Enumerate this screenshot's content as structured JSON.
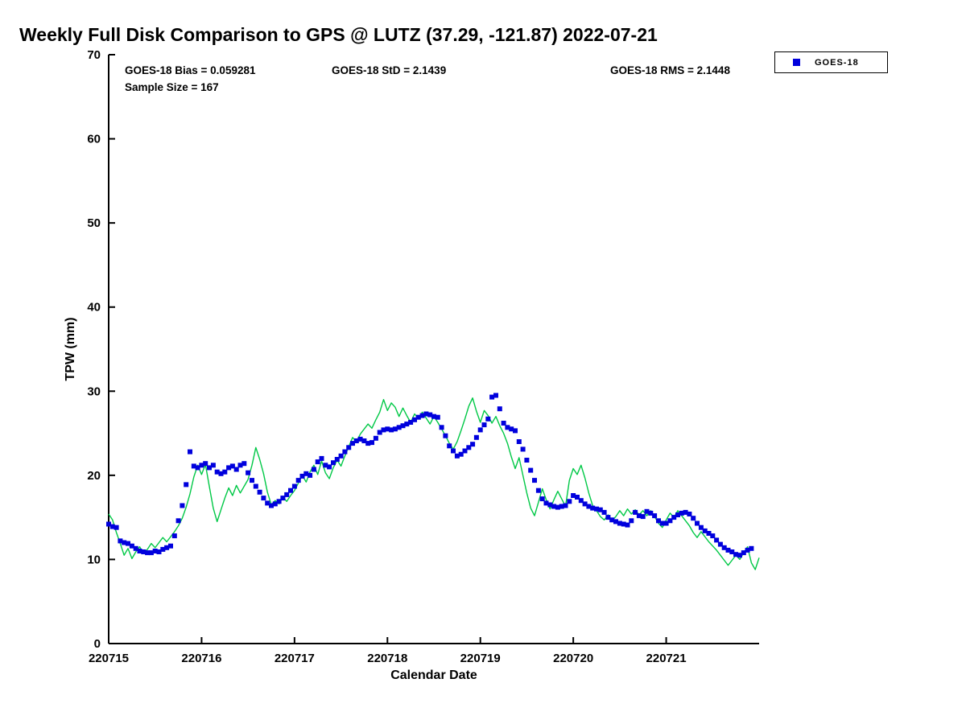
{
  "title": "Weekly Full Disk Comparison to GPS @ LUTZ (37.29, -121.87) 2022-07-21",
  "stats": {
    "bias": "GOES-18 Bias = 0.059281",
    "std": "GOES-18 StD = 2.1439",
    "rms": "GOES-18 RMS = 2.1448",
    "sample_size": "Sample Size = 167"
  },
  "legend": {
    "items": [
      {
        "label": "GOES-18",
        "marker": "square",
        "color": "#0000dd"
      }
    ],
    "position": "outside-top-right"
  },
  "chart_data": {
    "type": "line",
    "title": "Weekly Full Disk Comparison to GPS @ LUTZ (37.29, -121.87) 2022-07-21",
    "xlabel": "Calendar Date",
    "ylabel": "TPW (mm)",
    "x_base": 220715,
    "xlim": [
      220715,
      220722
    ],
    "ylim": [
      0,
      70
    ],
    "grid": false,
    "xticks": [
      {
        "offset": 0,
        "label": "220715"
      },
      {
        "offset": 1,
        "label": "220716"
      },
      {
        "offset": 2,
        "label": "220717"
      },
      {
        "offset": 3,
        "label": "220718"
      },
      {
        "offset": 4,
        "label": "220719"
      },
      {
        "offset": 5,
        "label": "220720"
      },
      {
        "offset": 6,
        "label": "220721"
      }
    ],
    "yticks": [
      0,
      10,
      20,
      30,
      40,
      50,
      60,
      70
    ],
    "series": [
      {
        "name": "GPS",
        "type": "line",
        "color": "#00c846",
        "line_width": 1.4,
        "x_start": 0,
        "x_step": 0.0416667,
        "y": [
          15.4,
          14.7,
          13.2,
          11.9,
          10.5,
          11.3,
          10.1,
          10.9,
          11.5,
          10.7,
          11.2,
          11.9,
          11.4,
          12.0,
          12.6,
          12.1,
          12.7,
          13.3,
          14.0,
          14.9,
          16.2,
          17.8,
          19.8,
          21.2,
          20.1,
          21.3,
          18.7,
          16.1,
          14.5,
          15.9,
          17.3,
          18.5,
          17.6,
          18.8,
          17.9,
          18.7,
          19.5,
          21.2,
          23.3,
          21.9,
          20.2,
          18.0,
          16.5,
          17.0,
          16.6,
          17.4,
          16.9,
          17.6,
          18.2,
          19.1,
          20.0,
          19.2,
          20.4,
          21.2,
          20.1,
          21.7,
          20.3,
          19.6,
          20.9,
          21.8,
          21.1,
          22.3,
          23.4,
          24.5,
          24.0,
          24.9,
          25.5,
          26.1,
          25.6,
          26.6,
          27.5,
          29.0,
          27.7,
          28.6,
          28.1,
          27.0,
          28.0,
          27.1,
          26.3,
          27.3,
          26.7,
          27.5,
          26.8,
          26.1,
          27.0,
          26.3,
          25.5,
          24.7,
          23.8,
          23.1,
          24.0,
          25.3,
          26.7,
          28.2,
          29.2,
          27.6,
          26.3,
          27.7,
          27.1,
          26.2,
          27.0,
          25.9,
          25.0,
          23.8,
          22.2,
          20.8,
          22.1,
          20.0,
          17.9,
          16.1,
          15.2,
          16.8,
          18.4,
          17.1,
          16.0,
          17.1,
          18.1,
          17.2,
          16.3,
          19.4,
          20.8,
          20.1,
          21.2,
          19.7,
          17.9,
          16.4,
          15.8,
          15.1,
          14.7,
          15.3,
          14.6,
          15.1,
          15.8,
          15.2,
          16.0,
          15.4,
          15.9,
          15.3,
          15.8,
          15.2,
          15.8,
          15.1,
          14.3,
          13.8,
          14.7,
          15.5,
          15.0,
          15.8,
          15.2,
          14.6,
          14.0,
          13.2,
          12.6,
          13.3,
          12.7,
          12.1,
          11.6,
          11.1,
          10.5,
          9.9,
          9.3,
          9.9,
          10.5,
          10.0,
          10.8,
          11.5,
          9.6,
          8.8,
          10.2
        ]
      },
      {
        "name": "GOES-18",
        "type": "scatter",
        "marker": "square",
        "marker_size": 6,
        "color": "#0000dd",
        "x_start": 0,
        "x_step": 0.0416667,
        "y": [
          14.2,
          13.9,
          13.8,
          12.2,
          12.0,
          11.9,
          11.6,
          11.3,
          11.0,
          10.9,
          10.8,
          10.8,
          11.0,
          10.9,
          11.2,
          11.4,
          11.6,
          12.8,
          14.6,
          16.4,
          18.9,
          22.8,
          21.1,
          20.9,
          21.2,
          21.4,
          20.9,
          21.2,
          20.4,
          20.2,
          20.4,
          20.9,
          21.1,
          20.7,
          21.2,
          21.4,
          20.3,
          19.4,
          18.7,
          18.0,
          17.3,
          16.7,
          16.4,
          16.6,
          16.9,
          17.3,
          17.7,
          18.2,
          18.7,
          19.4,
          19.9,
          20.2,
          20.0,
          20.7,
          21.6,
          22.0,
          21.2,
          21.0,
          21.5,
          21.9,
          22.3,
          22.8,
          23.3,
          23.8,
          24.1,
          24.3,
          24.1,
          23.8,
          23.9,
          24.4,
          25.1,
          25.4,
          25.5,
          25.4,
          25.5,
          25.7,
          25.9,
          26.1,
          26.3,
          26.6,
          26.9,
          27.1,
          27.3,
          27.2,
          27.0,
          26.9,
          25.7,
          24.7,
          23.5,
          22.9,
          22.3,
          22.5,
          22.9,
          23.3,
          23.7,
          24.5,
          25.4,
          26.0,
          26.7,
          29.3,
          29.5,
          27.9,
          26.2,
          25.7,
          25.5,
          25.3,
          24.0,
          23.1,
          21.8,
          20.6,
          19.4,
          18.2,
          17.2,
          16.7,
          16.5,
          16.3,
          16.2,
          16.3,
          16.4,
          16.9,
          17.6,
          17.4,
          17.0,
          16.6,
          16.3,
          16.1,
          16.0,
          15.9,
          15.6,
          15.0,
          14.7,
          14.5,
          14.3,
          14.2,
          14.1,
          14.6,
          15.6,
          15.2,
          15.1,
          15.7,
          15.5,
          15.2,
          14.6,
          14.3,
          14.3,
          14.6,
          15.0,
          15.3,
          15.5,
          15.6,
          15.4,
          14.9,
          14.3,
          13.8,
          13.4,
          13.1,
          12.8,
          12.3,
          11.8,
          11.4,
          11.1,
          10.9,
          10.6,
          10.5,
          10.8,
          11.1,
          11.3
        ]
      }
    ]
  }
}
